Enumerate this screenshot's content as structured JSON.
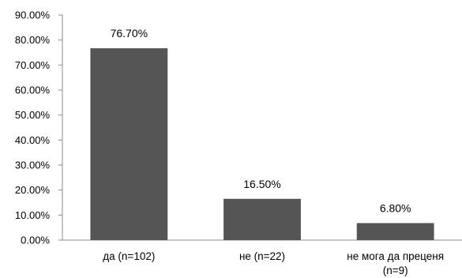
{
  "chart_data": {
    "type": "bar",
    "categories": [
      "да (n=102)",
      "не (n=22)",
      "не мога да преценя (n=9)"
    ],
    "category_lines": [
      [
        "да (n=102)"
      ],
      [
        "не (n=22)"
      ],
      [
        "не мога да преценя",
        "(n=9)"
      ]
    ],
    "values": [
      76.7,
      16.5,
      6.8
    ],
    "data_labels": [
      "76.70%",
      "16.50%",
      "6.80%"
    ],
    "y_ticks": [
      "0.00%",
      "10.00%",
      "20.00%",
      "30.00%",
      "40.00%",
      "50.00%",
      "60.00%",
      "70.00%",
      "80.00%",
      "90.00%"
    ],
    "ylim": [
      0,
      90
    ],
    "grid": false,
    "title": "",
    "xlabel": "",
    "ylabel": "",
    "bar_color": "#555555",
    "axis_color": "#8c8c8c"
  }
}
